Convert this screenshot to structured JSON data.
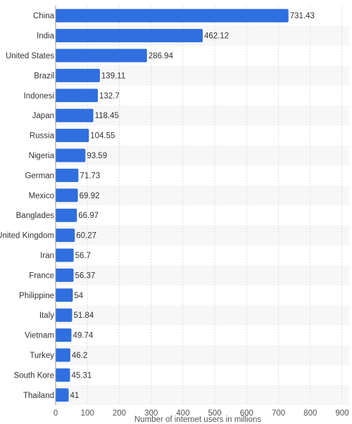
{
  "chart_data": {
    "type": "bar",
    "orientation": "horizontal",
    "categories": [
      "China",
      "India",
      "United States",
      "Brazil",
      "Indonesia",
      "Japan",
      "Russia",
      "Nigeria",
      "Germany",
      "Mexico",
      "Bangladesh",
      "United Kingdom",
      "Iran",
      "France",
      "Philippines",
      "Italy",
      "Vietnam",
      "Turkey",
      "South Korea",
      "Thailand"
    ],
    "category_labels": [
      "China",
      "India",
      "United States",
      "Brazil",
      "Indonesi",
      "Japan",
      "Russia",
      "Nigeria",
      "German",
      "Mexico",
      "Banglades",
      "United Kingdom",
      "Iran",
      "France",
      "Philippine",
      "Italy",
      "Vietnam",
      "Turkey",
      "South Kore",
      "Thailand"
    ],
    "values": [
      731.43,
      462.12,
      286.94,
      139.11,
      132.7,
      118.45,
      104.55,
      93.59,
      71.73,
      69.92,
      66.97,
      60.27,
      56.7,
      56.37,
      54,
      51.84,
      49.74,
      46.2,
      45.31,
      41
    ],
    "value_labels": [
      "731.43",
      "462.12",
      "286.94",
      "139.11",
      "132.7",
      "118.45",
      "104.55",
      "93.59",
      "71.73",
      "69.92",
      "66.97",
      "60.27",
      "56.7",
      "56.37",
      "54",
      "51.84",
      "49.74",
      "46.2",
      "45.31",
      "41"
    ],
    "xlabel": "Number of internet users in millions",
    "ylabel": "",
    "xlim": [
      0,
      900
    ],
    "xticks": [
      0,
      100,
      200,
      300,
      400,
      500,
      600,
      700,
      800,
      900
    ],
    "grid": true,
    "colors": {
      "bar": "#2f6fdf",
      "grid": "#dddddd",
      "band": "#f7f7f7",
      "axis": "#999999"
    }
  }
}
